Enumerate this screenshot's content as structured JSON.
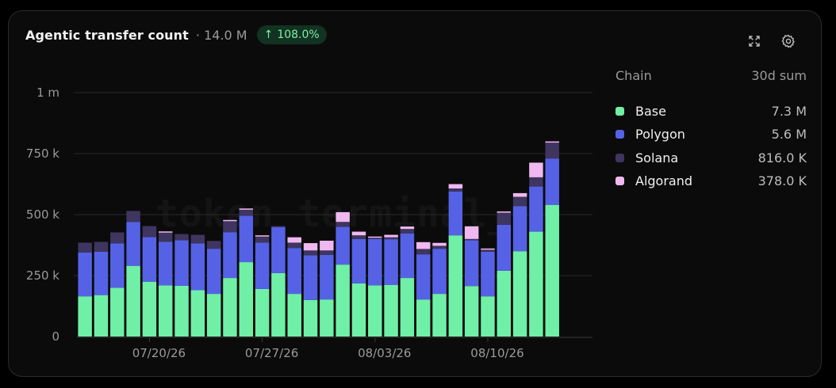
{
  "header": {
    "title": "Agentic transfer count",
    "subtitle": "· 14.0 M",
    "change": "108.0%",
    "change_arrow": "↑"
  },
  "icons": {
    "expand": "expand-icon",
    "settings": "gear-icon"
  },
  "watermark": "token terminal_",
  "legend": {
    "heading_name": "Chain",
    "heading_value": "30d sum",
    "items": [
      {
        "name": "Base",
        "value": "7.3 M",
        "color": "#6ff0a6"
      },
      {
        "name": "Polygon",
        "value": "5.6 M",
        "color": "#5562e6"
      },
      {
        "name": "Solana",
        "value": "816.0 K",
        "color": "#3e3560"
      },
      {
        "name": "Algorand",
        "value": "378.0 K",
        "color": "#f0b8f0"
      }
    ]
  },
  "chart_data": {
    "type": "bar",
    "stacked": true,
    "categories": [
      "07/16/26",
      "07/17/26",
      "07/18/26",
      "07/19/26",
      "07/20/26",
      "07/21/26",
      "07/22/26",
      "07/23/26",
      "07/24/26",
      "07/25/26",
      "07/26/26",
      "07/27/26",
      "07/28/26",
      "07/29/26",
      "07/30/26",
      "07/31/26",
      "08/01/26",
      "08/02/26",
      "08/03/26",
      "08/04/26",
      "08/05/26",
      "08/06/26",
      "08/07/26",
      "08/08/26",
      "08/09/26",
      "08/10/26",
      "08/11/26",
      "08/12/26",
      "08/13/26",
      "08/14/26",
      "08/15/26",
      "08/16/26"
    ],
    "x_ticks": [
      "07/20/26",
      "07/27/26",
      "08/03/26",
      "08/10/26"
    ],
    "y_ticks": [
      "0",
      "250 k",
      "500 k",
      "750 k",
      "1 m"
    ],
    "ylim": [
      0,
      1000000
    ],
    "grid": true,
    "legend_position": "right",
    "series": [
      {
        "name": "Base",
        "color": "#6ff0a6",
        "values": [
          165000,
          170000,
          200000,
          290000,
          225000,
          210000,
          208000,
          190000,
          175000,
          240000,
          305000,
          195000,
          260000,
          175000,
          150000,
          152000,
          295000,
          218000,
          210000,
          212000,
          240000,
          152000,
          175000,
          415000,
          207000,
          165000,
          270000,
          350000,
          430000,
          540000,
          0,
          0
        ]
      },
      {
        "name": "Polygon",
        "color": "#5562e6",
        "values": [
          180000,
          178000,
          182000,
          180000,
          183000,
          178000,
          187000,
          192000,
          185000,
          188000,
          190000,
          190000,
          188000,
          188000,
          183000,
          183000,
          155000,
          182000,
          190000,
          187000,
          183000,
          185000,
          185000,
          180000,
          188000,
          183000,
          188000,
          185000,
          185000,
          190000,
          0,
          0
        ]
      },
      {
        "name": "Solana",
        "color": "#3e3560",
        "values": [
          40000,
          40000,
          45000,
          45000,
          45000,
          38000,
          25000,
          35000,
          32000,
          45000,
          25000,
          25000,
          5000,
          22000,
          20000,
          18000,
          20000,
          15000,
          5000,
          8000,
          18000,
          22000,
          12000,
          12000,
          5000,
          8000,
          50000,
          38000,
          38000,
          65000,
          0,
          0
        ]
      },
      {
        "name": "Algorand",
        "color": "#f0b8f0",
        "values": [
          0,
          0,
          0,
          0,
          0,
          5000,
          0,
          0,
          0,
          5000,
          5000,
          5000,
          0,
          22000,
          30000,
          40000,
          40000,
          15000,
          5000,
          10000,
          10000,
          28000,
          12000,
          18000,
          52000,
          5000,
          5000,
          15000,
          60000,
          5000,
          0,
          0
        ]
      }
    ]
  }
}
